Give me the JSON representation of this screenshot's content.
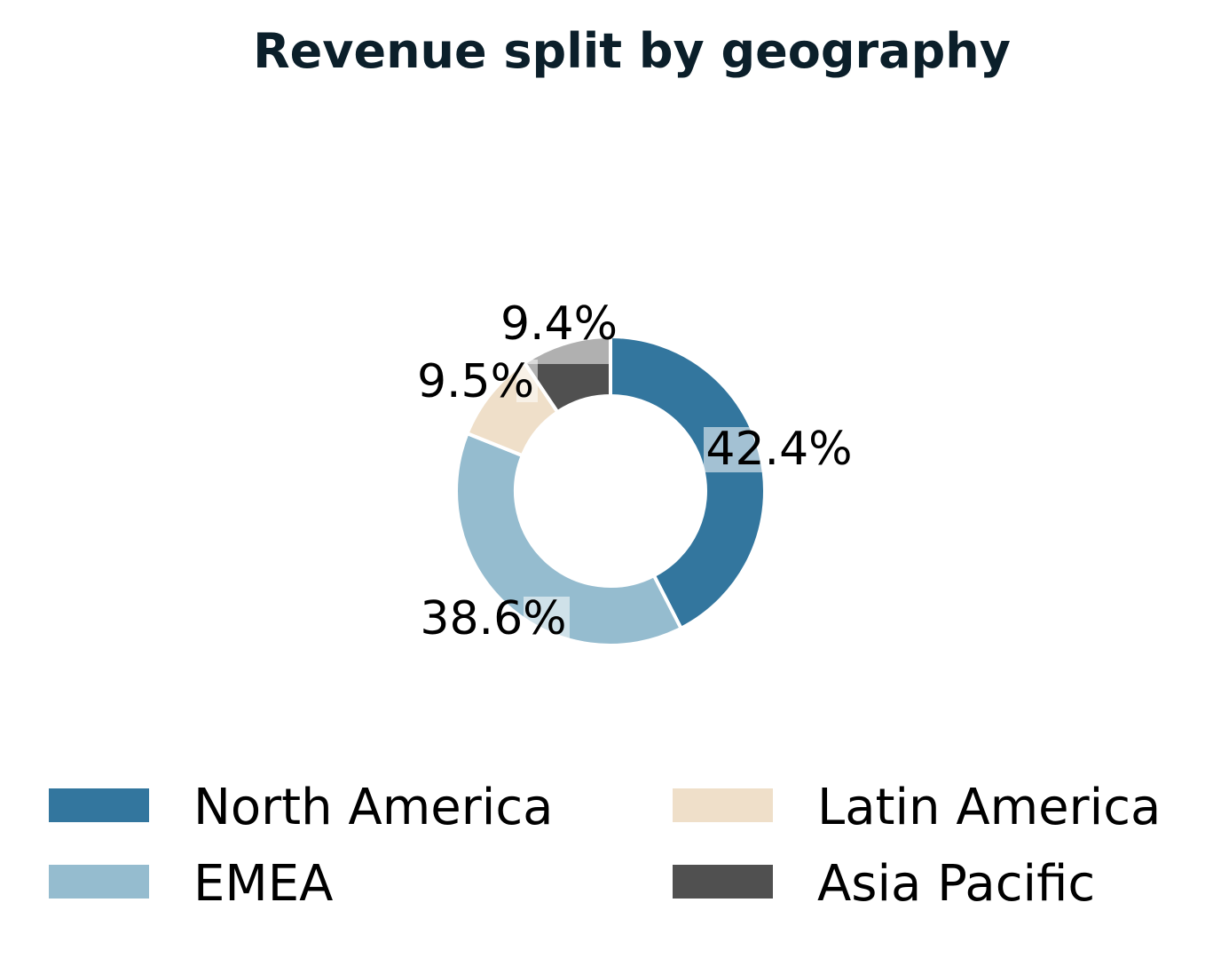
{
  "chart_data": {
    "type": "pie",
    "variant": "donut",
    "title": "Revenue split by geography",
    "categories": [
      "North America",
      "EMEA",
      "Latin America",
      "Asia Pacific"
    ],
    "values": [
      42.4,
      38.6,
      9.5,
      9.4
    ],
    "labels": [
      "42.4%",
      "38.6%",
      "9.5%",
      "9.4%"
    ],
    "colors": [
      "#33769e",
      "#95bccf",
      "#efdfc9",
      "#505050"
    ],
    "legend": {
      "placement": "bottom",
      "columns": 2,
      "entries": [
        "North America",
        "EMEA",
        "Latin America",
        "Asia Pacific"
      ]
    },
    "start": "top",
    "direction": "clockwise"
  }
}
